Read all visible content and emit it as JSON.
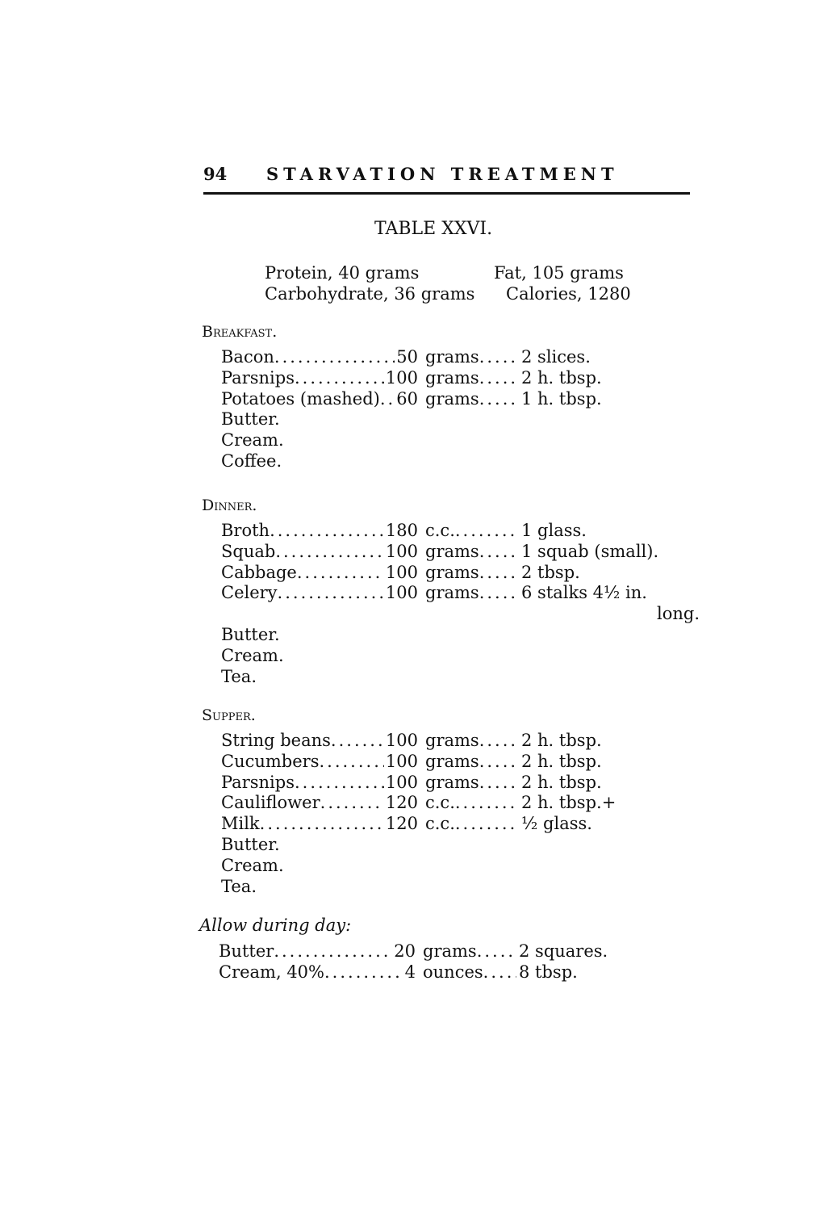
{
  "header": {
    "page_number": "94",
    "running_title": "STARVATION TREATMENT"
  },
  "table_title": "TABLE XXVI.",
  "macros": {
    "protein": "Protein, 40 grams",
    "fat": "Fat, 105 grams",
    "carbohydrate": "Carbohydrate, 36 grams",
    "calories": "Calories, 1280"
  },
  "sections": [
    {
      "title": "Breakfast.",
      "rows": [
        {
          "item": "Bacon",
          "amount": "50",
          "unit": "grams",
          "measure": "2 slices."
        },
        {
          "item": "Parsnips",
          "amount": "100",
          "unit": "grams",
          "measure": "2 h. tbsp."
        },
        {
          "item": "Potatoes (mashed)",
          "amount": "60",
          "unit": "grams",
          "measure": "1 h. tbsp."
        },
        {
          "item": "Butter."
        },
        {
          "item": "Cream."
        },
        {
          "item": "Coffee."
        }
      ]
    },
    {
      "title": "Dinner.",
      "rows": [
        {
          "item": "Broth",
          "amount": "180",
          "unit": "c.c.",
          "measure": "1 glass."
        },
        {
          "item": "Squab",
          "amount": "100",
          "unit": "grams",
          "measure": "1 squab (small)."
        },
        {
          "item": "Cabbage",
          "amount": "100",
          "unit": "grams",
          "measure": "2 tbsp."
        },
        {
          "item": "Celery",
          "amount": "100",
          "unit": "grams",
          "measure": "6 stalks 4½ in."
        },
        {
          "continuation": "long."
        },
        {
          "item": "Butter."
        },
        {
          "item": "Cream."
        },
        {
          "item": "Tea."
        }
      ]
    },
    {
      "title": "Supper.",
      "rows": [
        {
          "item": "String beans",
          "amount": "100",
          "unit": "grams",
          "measure": "2 h. tbsp."
        },
        {
          "item": "Cucumbers",
          "amount": "100",
          "unit": "grams",
          "measure": "2 h. tbsp."
        },
        {
          "item": "Parsnips",
          "amount": "100",
          "unit": "grams",
          "measure": "2 h. tbsp."
        },
        {
          "item": "Cauliflower",
          "amount": "120",
          "unit": "c.c.",
          "measure": "2 h. tbsp.+"
        },
        {
          "item": "Milk",
          "amount": "120",
          "unit": "c.c.",
          "measure": "½ glass."
        },
        {
          "item": "Butter."
        },
        {
          "item": "Cream."
        },
        {
          "item": "Tea."
        }
      ]
    },
    {
      "title": "Allow during day:",
      "italic": true,
      "rows": [
        {
          "item": "Butter",
          "amount": "20",
          "unit": "grams",
          "measure": "2 squares."
        },
        {
          "item": "Cream, 40%",
          "amount": "4",
          "unit": "ounces",
          "measure": "8 tbsp."
        }
      ]
    }
  ]
}
